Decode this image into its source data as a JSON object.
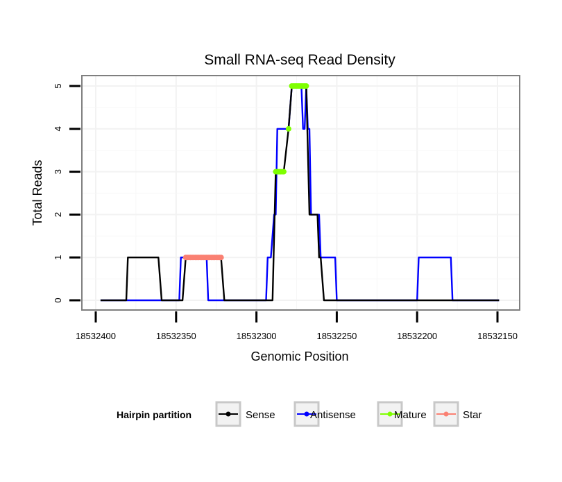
{
  "chart_data": {
    "type": "line",
    "title": "Small RNA-seq Read Density",
    "xlabel": "Genomic Position",
    "ylabel": "Total Reads",
    "x_reversed": true,
    "xlim": [
      18532400,
      18532150
    ],
    "ylim": [
      0,
      5
    ],
    "x_ticks": [
      18532400,
      18532350,
      18532300,
      18532250,
      18532200,
      18532150
    ],
    "x_tick_labels": [
      "18532400",
      "18532350",
      "18532300",
      "18532250",
      "18532200",
      "18532150"
    ],
    "y_ticks": [
      0,
      1,
      2,
      3,
      4,
      5
    ],
    "y_tick_labels": [
      "0",
      "1",
      "2",
      "3",
      "4",
      "5"
    ],
    "grid": true,
    "legend": {
      "title": "Hairpin partition",
      "position": "bottom",
      "entries": [
        {
          "name": "Sense",
          "color": "#000000"
        },
        {
          "name": "Antisense",
          "color": "#0000ff"
        },
        {
          "name": "Mature",
          "color": "#7fff00"
        },
        {
          "name": "Star",
          "color": "#fa8072"
        }
      ]
    },
    "series": [
      {
        "name": "Sense",
        "color": "#000000",
        "style": "line",
        "points": [
          [
            18532397,
            0
          ],
          [
            18532381,
            0
          ],
          [
            18532380,
            1
          ],
          [
            18532361,
            1
          ],
          [
            18532359,
            0
          ],
          [
            18532346,
            0
          ],
          [
            18532344,
            1
          ],
          [
            18532322,
            1
          ],
          [
            18532320,
            0
          ],
          [
            18532290,
            0
          ],
          [
            18532288,
            3
          ],
          [
            18532283,
            3
          ],
          [
            18532280,
            4
          ],
          [
            18532278,
            5
          ],
          [
            18532269,
            5
          ],
          [
            18532267,
            2
          ],
          [
            18532262,
            2
          ],
          [
            18532261,
            1
          ],
          [
            18532260,
            1
          ],
          [
            18532258,
            0
          ],
          [
            18532149,
            0
          ]
        ]
      },
      {
        "name": "Antisense",
        "color": "#0000ff",
        "style": "line",
        "points": [
          [
            18532397,
            0
          ],
          [
            18532359,
            0
          ],
          [
            18532348,
            0
          ],
          [
            18532347,
            1
          ],
          [
            18532331,
            1
          ],
          [
            18532330,
            0
          ],
          [
            18532294,
            0
          ],
          [
            18532293,
            1
          ],
          [
            18532291,
            1
          ],
          [
            18532289,
            2
          ],
          [
            18532288,
            2
          ],
          [
            18532287,
            4
          ],
          [
            18532280,
            4
          ],
          [
            18532278,
            5
          ],
          [
            18532272,
            5
          ],
          [
            18532271,
            4
          ],
          [
            18532270,
            4
          ],
          [
            18532269,
            5
          ],
          [
            18532268,
            4
          ],
          [
            18532267,
            4
          ],
          [
            18532266,
            2
          ],
          [
            18532261,
            2
          ],
          [
            18532260,
            1
          ],
          [
            18532251,
            1
          ],
          [
            18532250,
            0
          ],
          [
            18532200,
            0
          ],
          [
            18532199,
            1
          ],
          [
            18532179,
            1
          ],
          [
            18532178,
            0
          ],
          [
            18532149,
            0
          ]
        ]
      },
      {
        "name": "Mature",
        "color": "#7fff00",
        "style": "dots",
        "points": [
          [
            18532288,
            3
          ],
          [
            18532287,
            3
          ],
          [
            18532286,
            3
          ],
          [
            18532285,
            3
          ],
          [
            18532284,
            3
          ],
          [
            18532283,
            3
          ],
          [
            18532280,
            4
          ],
          [
            18532278,
            5
          ],
          [
            18532277,
            5
          ],
          [
            18532276,
            5
          ],
          [
            18532275,
            5
          ],
          [
            18532274,
            5
          ],
          [
            18532273,
            5
          ],
          [
            18532272,
            5
          ],
          [
            18532271,
            5
          ],
          [
            18532270,
            5
          ],
          [
            18532269,
            5
          ]
        ]
      },
      {
        "name": "Star",
        "color": "#fa8072",
        "style": "dots",
        "points": [
          [
            18532344,
            1
          ],
          [
            18532343,
            1
          ],
          [
            18532342,
            1
          ],
          [
            18532341,
            1
          ],
          [
            18532340,
            1
          ],
          [
            18532339,
            1
          ],
          [
            18532338,
            1
          ],
          [
            18532337,
            1
          ],
          [
            18532336,
            1
          ],
          [
            18532335,
            1
          ],
          [
            18532334,
            1
          ],
          [
            18532333,
            1
          ],
          [
            18532332,
            1
          ],
          [
            18532331,
            1
          ],
          [
            18532330,
            1
          ],
          [
            18532329,
            1
          ],
          [
            18532328,
            1
          ],
          [
            18532327,
            1
          ],
          [
            18532326,
            1
          ],
          [
            18532325,
            1
          ],
          [
            18532324,
            1
          ],
          [
            18532323,
            1
          ],
          [
            18532322,
            1
          ]
        ]
      }
    ]
  }
}
